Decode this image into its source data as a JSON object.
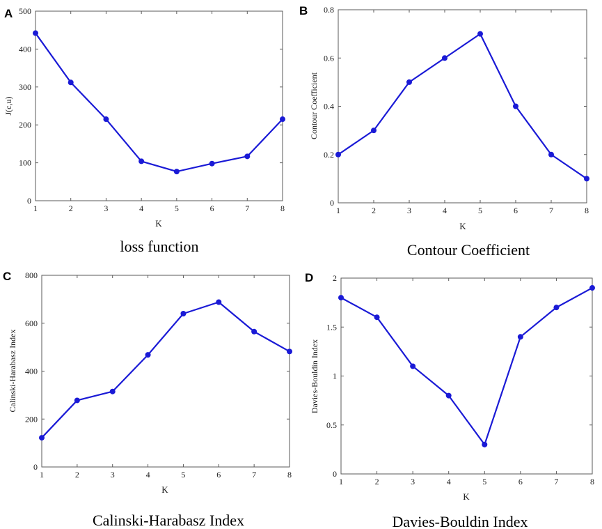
{
  "figure": {
    "colors": {
      "series": "#1a1ad6",
      "frame": "#5a5a5a",
      "text": "#1a1a1a"
    }
  },
  "chart_data": [
    {
      "panel": "A",
      "type": "line",
      "caption": "loss function",
      "xlabel": "K",
      "ylabel": "J(c,u)",
      "x": [
        1,
        2,
        3,
        4,
        5,
        6,
        7,
        8
      ],
      "values": [
        442,
        312,
        215,
        104,
        77,
        98,
        117,
        215
      ],
      "xlim": [
        1,
        8
      ],
      "ylim": [
        0,
        500
      ],
      "yticks": [
        0,
        100,
        200,
        300,
        400,
        500
      ],
      "ytick_labels": [
        "0",
        "100",
        "200",
        "300",
        "400",
        "500"
      ],
      "xticks": [
        1,
        2,
        3,
        4,
        5,
        6,
        7,
        8
      ],
      "xtick_labels": [
        "1",
        "2",
        "3",
        "4",
        "5",
        "6",
        "7",
        "8"
      ],
      "grid": false
    },
    {
      "panel": "B",
      "type": "line",
      "caption": "Contour Coefficient",
      "xlabel": "K",
      "ylabel": "Contour Coefficient",
      "x": [
        1,
        2,
        3,
        4,
        5,
        6,
        7,
        8
      ],
      "values": [
        0.2,
        0.3,
        0.5,
        0.6,
        0.7,
        0.4,
        0.2,
        0.1
      ],
      "xlim": [
        1,
        8
      ],
      "ylim": [
        0,
        0.8
      ],
      "yticks": [
        0,
        0.2,
        0.4,
        0.6,
        0.8
      ],
      "ytick_labels": [
        "0",
        "0.2",
        "0.4",
        "0.6",
        "0.8"
      ],
      "xticks": [
        1,
        2,
        3,
        4,
        5,
        6,
        7,
        8
      ],
      "xtick_labels": [
        "1",
        "2",
        "3",
        "4",
        "5",
        "6",
        "7",
        "8"
      ],
      "grid": false
    },
    {
      "panel": "C",
      "type": "line",
      "caption": "Calinski-Harabasz Index",
      "xlabel": "K",
      "ylabel": "Calinski-Harabasz Index",
      "x": [
        1,
        2,
        3,
        4,
        5,
        6,
        7,
        8
      ],
      "values": [
        122,
        278,
        315,
        468,
        640,
        688,
        565,
        482
      ],
      "xlim": [
        1,
        8
      ],
      "ylim": [
        0,
        800
      ],
      "yticks": [
        0,
        200,
        400,
        600,
        800
      ],
      "ytick_labels": [
        "0",
        "200",
        "400",
        "600",
        "800"
      ],
      "xticks": [
        1,
        2,
        3,
        4,
        5,
        6,
        7,
        8
      ],
      "xtick_labels": [
        "1",
        "2",
        "3",
        "4",
        "5",
        "6",
        "7",
        "8"
      ],
      "grid": false
    },
    {
      "panel": "D",
      "type": "line",
      "caption": "Davies-Bouldin Index",
      "xlabel": "K",
      "ylabel": "Davies-Bouldin Index",
      "x": [
        1,
        2,
        3,
        4,
        5,
        6,
        7,
        8
      ],
      "values": [
        1.8,
        1.6,
        1.1,
        0.8,
        0.3,
        1.4,
        1.7,
        1.9
      ],
      "xlim": [
        1,
        8
      ],
      "ylim": [
        0,
        2
      ],
      "yticks": [
        0,
        0.5,
        1,
        1.5,
        2
      ],
      "ytick_labels": [
        "0",
        "0.5",
        "1",
        "1.5",
        "2"
      ],
      "xticks": [
        1,
        2,
        3,
        4,
        5,
        6,
        7,
        8
      ],
      "xtick_labels": [
        "1",
        "2",
        "3",
        "4",
        "5",
        "6",
        "7",
        "8"
      ],
      "grid": false
    }
  ]
}
